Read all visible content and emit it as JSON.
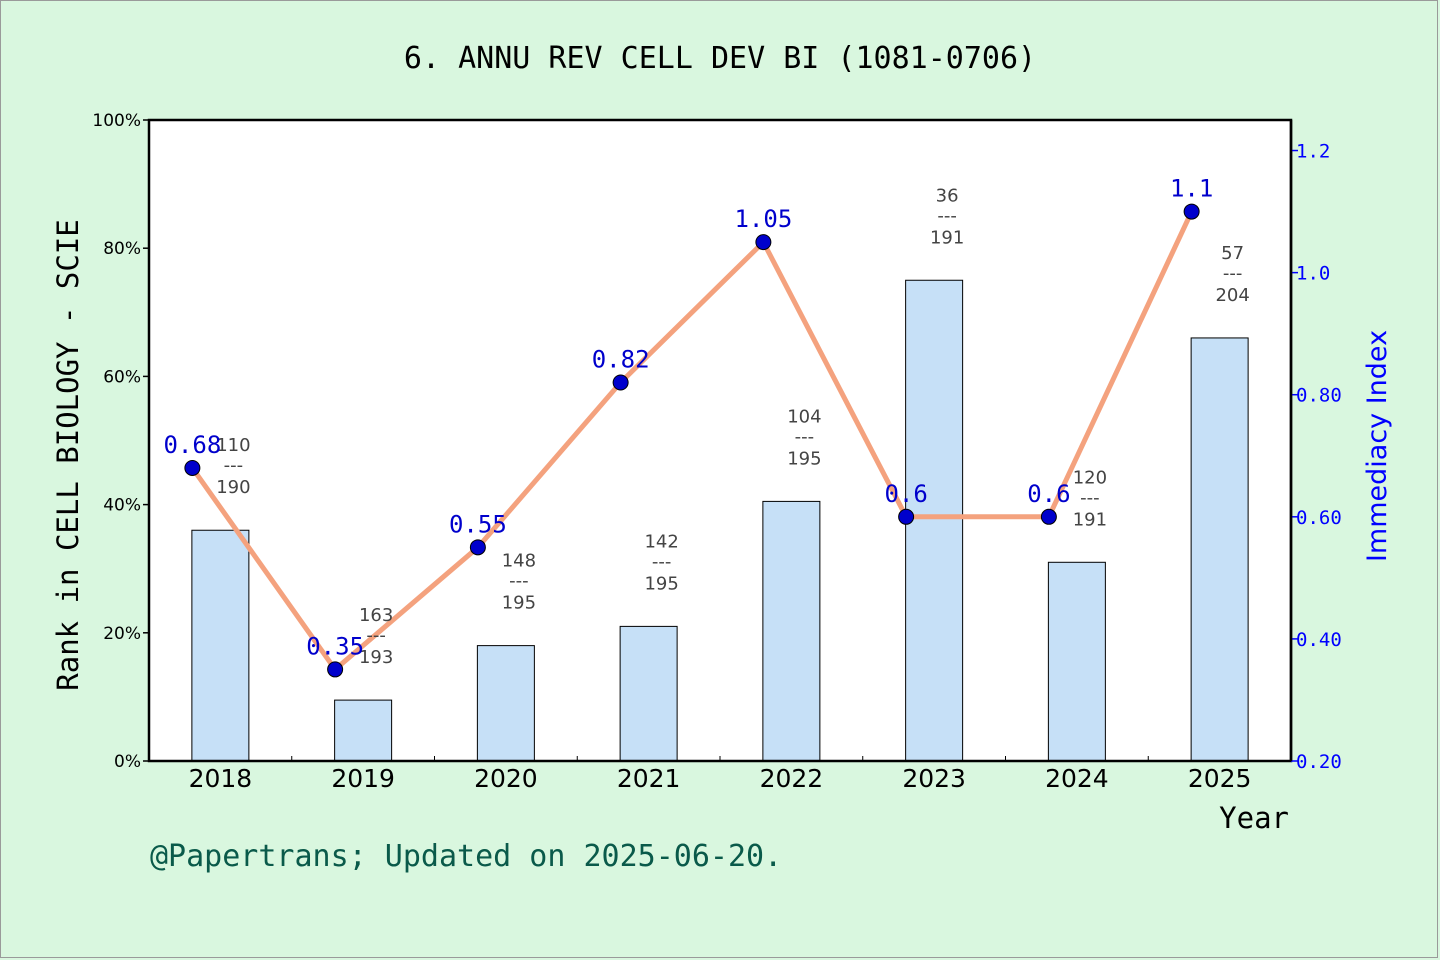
{
  "chart_data": {
    "type": "bar",
    "title": "6. ANNU REV CELL DEV BI (1081-0706)",
    "xlabel": "Year",
    "ylabel_left": "Rank in CELL BIOLOGY - SCIE",
    "ylabel_right": "Immediacy Index",
    "categories": [
      "2018",
      "2019",
      "2020",
      "2021",
      "2022",
      "2023",
      "2024",
      "2025"
    ],
    "bars": {
      "values_percent": [
        36,
        9.5,
        18,
        21,
        40.5,
        75,
        31,
        66
      ],
      "rank": [
        "110",
        "163",
        "148",
        "142",
        "104",
        "36",
        "120",
        "57"
      ],
      "total": [
        "190",
        "193",
        "195",
        "195",
        "195",
        "191",
        "191",
        "204"
      ],
      "separator": "---"
    },
    "line": {
      "values": [
        0.68,
        0.35,
        0.55,
        0.82,
        1.05,
        0.6,
        0.6,
        1.1
      ],
      "labels": [
        "0.68",
        "0.35",
        "0.55",
        "0.82",
        "1.05",
        "0.6",
        "0.6",
        "1.1"
      ]
    },
    "y_left": {
      "range": [
        0,
        100
      ],
      "ticks": [
        "0%",
        "20%",
        "40%",
        "60%",
        "80%",
        "100%"
      ]
    },
    "y_right": {
      "range": [
        0.2,
        1.25
      ],
      "ticks": [
        "0.20",
        "0.40",
        "0.60",
        "0.80",
        "1.0",
        "1.2"
      ]
    },
    "colors": {
      "background": "#d9f7df",
      "bar_fill": "#c6e0f7",
      "line": "#f4a27e",
      "marker": "#0000cc",
      "right_axis": "#0000ff",
      "footer": "#0a5a4a"
    }
  },
  "footer": "@Papertrans; Updated on 2025-06-20."
}
